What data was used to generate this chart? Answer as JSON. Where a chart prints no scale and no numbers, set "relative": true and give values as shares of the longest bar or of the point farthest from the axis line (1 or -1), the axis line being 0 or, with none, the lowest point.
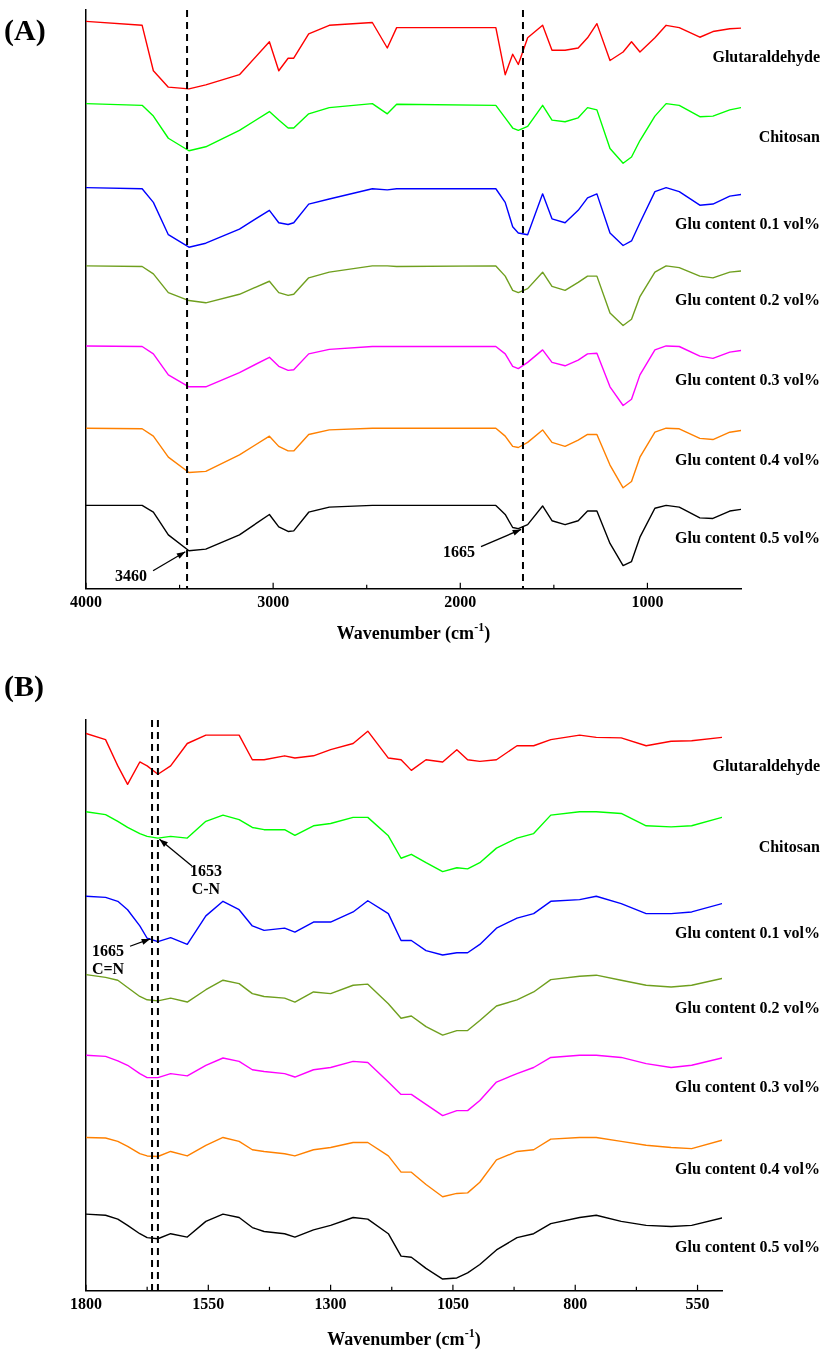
{
  "chart_data": [
    {
      "type": "line",
      "title": "(A)",
      "xlabel": "Wavenumber (cm$^{-1}$)",
      "relative": true,
      "legend": false,
      "marker": "none",
      "line_style": "solid",
      "xlim": [
        4000,
        500
      ],
      "xticks": [
        4000,
        {
          "value": 3500,
          "label": null
        },
        3000,
        {
          "value": 2500,
          "label": null
        },
        2000,
        {
          "value": 1500,
          "label": null
        },
        1000
      ],
      "x": [
        4000,
        3700,
        3640,
        3560,
        3450,
        3360,
        3180,
        3020,
        2970,
        2920,
        2890,
        2810,
        2700,
        2470,
        2390,
        2340,
        1810,
        1760,
        1720,
        1690,
        1640,
        1560,
        1510,
        1440,
        1370,
        1320,
        1270,
        1200,
        1130,
        1085,
        1040,
        960,
        900,
        830,
        720,
        650,
        560,
        500
      ],
      "ref_lines": [
        {
          "axis": "x",
          "value": 3460,
          "color": "#000000",
          "line_style": "dashed"
        },
        {
          "axis": "x",
          "value": 1665,
          "color": "#000000",
          "line_style": "dashed"
        }
      ],
      "annotations": [
        {
          "text": "3460",
          "x": 3460,
          "y": 0.067
        },
        {
          "text": "1665",
          "x": 1665,
          "y": 0.106
        }
      ],
      "series": [
        {
          "name": "Glutaraldehyde",
          "color": "#ff0000",
          "values": [
            1.0,
            0.993,
            0.913,
            0.884,
            0.881,
            0.888,
            0.906,
            0.964,
            0.913,
            0.935,
            0.935,
            0.978,
            0.993,
            0.998,
            0.953,
            0.989,
            0.989,
            0.906,
            0.942,
            0.924,
            0.971,
            0.993,
            0.949,
            0.949,
            0.953,
            0.971,
            0.996,
            0.931,
            0.946,
            0.964,
            0.946,
            0.971,
            0.993,
            0.989,
            0.972,
            0.982,
            0.987,
            0.988
          ]
        },
        {
          "name": "Chitosan",
          "color": "#00ff00",
          "values": [
            0.855,
            0.852,
            0.833,
            0.794,
            0.772,
            0.779,
            0.808,
            0.841,
            0.826,
            0.812,
            0.812,
            0.837,
            0.848,
            0.855,
            0.837,
            0.854,
            0.852,
            0.83,
            0.812,
            0.808,
            0.815,
            0.852,
            0.826,
            0.823,
            0.83,
            0.848,
            0.844,
            0.776,
            0.75,
            0.761,
            0.79,
            0.833,
            0.855,
            0.852,
            0.832,
            0.833,
            0.844,
            0.848
          ]
        },
        {
          "name": "Glu content 0.1 vol%",
          "color": "#0000ff",
          "values": [
            0.707,
            0.705,
            0.681,
            0.624,
            0.602,
            0.609,
            0.634,
            0.667,
            0.645,
            0.642,
            0.645,
            0.678,
            0.687,
            0.705,
            0.703,
            0.705,
            0.705,
            0.681,
            0.638,
            0.627,
            0.624,
            0.696,
            0.652,
            0.645,
            0.667,
            0.689,
            0.696,
            0.627,
            0.605,
            0.613,
            0.645,
            0.7,
            0.707,
            0.7,
            0.676,
            0.678,
            0.692,
            0.695
          ]
        },
        {
          "name": "Glu content 0.2 vol%",
          "color": "#6f9f1e",
          "values": [
            0.569,
            0.568,
            0.555,
            0.522,
            0.508,
            0.504,
            0.519,
            0.542,
            0.522,
            0.517,
            0.519,
            0.548,
            0.558,
            0.569,
            0.569,
            0.568,
            0.569,
            0.551,
            0.526,
            0.522,
            0.529,
            0.558,
            0.533,
            0.526,
            0.54,
            0.551,
            0.551,
            0.486,
            0.464,
            0.475,
            0.515,
            0.558,
            0.569,
            0.566,
            0.551,
            0.548,
            0.558,
            0.56
          ]
        },
        {
          "name": "Glu content 0.3 vol%",
          "color": "#ff00ff",
          "values": [
            0.428,
            0.427,
            0.414,
            0.377,
            0.356,
            0.356,
            0.381,
            0.408,
            0.392,
            0.385,
            0.386,
            0.414,
            0.422,
            0.427,
            0.427,
            0.427,
            0.427,
            0.414,
            0.392,
            0.388,
            0.399,
            0.421,
            0.399,
            0.393,
            0.403,
            0.414,
            0.415,
            0.356,
            0.323,
            0.334,
            0.377,
            0.421,
            0.428,
            0.427,
            0.41,
            0.406,
            0.417,
            0.42
          ]
        },
        {
          "name": "Glu content 0.4 vol%",
          "color": "#ff8000",
          "values": [
            0.283,
            0.282,
            0.269,
            0.232,
            0.205,
            0.207,
            0.236,
            0.269,
            0.251,
            0.243,
            0.243,
            0.272,
            0.28,
            0.283,
            0.283,
            0.283,
            0.283,
            0.269,
            0.251,
            0.249,
            0.258,
            0.28,
            0.258,
            0.251,
            0.262,
            0.272,
            0.272,
            0.218,
            0.178,
            0.189,
            0.232,
            0.276,
            0.283,
            0.282,
            0.265,
            0.263,
            0.276,
            0.279
          ]
        },
        {
          "name": "Glu content 0.5 vol%",
          "color": "#000000",
          "values": [
            0.147,
            0.147,
            0.135,
            0.095,
            0.067,
            0.07,
            0.095,
            0.131,
            0.109,
            0.101,
            0.102,
            0.135,
            0.144,
            0.147,
            0.147,
            0.147,
            0.147,
            0.131,
            0.108,
            0.106,
            0.113,
            0.146,
            0.12,
            0.113,
            0.12,
            0.137,
            0.137,
            0.08,
            0.041,
            0.048,
            0.091,
            0.142,
            0.147,
            0.144,
            0.125,
            0.124,
            0.137,
            0.14
          ]
        }
      ]
    },
    {
      "type": "line",
      "title": "(B)",
      "xlabel": "Wavenumber (cm$^{-1}$)",
      "relative": true,
      "legend": false,
      "marker": "none",
      "line_style": "solid",
      "xlim": [
        1800,
        500
      ],
      "xticks": [
        1800,
        {
          "value": 1675,
          "label": null
        },
        1550,
        {
          "value": 1425,
          "label": null
        },
        1300,
        {
          "value": 1175,
          "label": null
        },
        1050,
        {
          "value": 925,
          "label": null
        },
        800,
        {
          "value": 675,
          "label": null
        },
        550
      ],
      "x": [
        1800,
        1760,
        1735,
        1715,
        1690,
        1675,
        1653,
        1627,
        1593,
        1555,
        1520,
        1487,
        1460,
        1436,
        1394,
        1373,
        1335,
        1300,
        1254,
        1224,
        1182,
        1156,
        1135,
        1105,
        1071,
        1042,
        1020,
        995,
        961,
        919,
        885,
        850,
        791,
        757,
        706,
        655,
        604,
        562,
        500
      ],
      "ref_lines": [
        {
          "axis": "x",
          "value": 1665,
          "color": "#000000",
          "line_style": "dashed"
        },
        {
          "axis": "x",
          "value": 1653,
          "color": "#000000",
          "line_style": "dashed"
        }
      ],
      "annotations": [
        {
          "text": "1653\nC-N",
          "x": 1653,
          "y": 0.809
        },
        {
          "text": "1665\nC=N",
          "x": 1665,
          "y": 0.63
        }
      ],
      "series": [
        {
          "name": "Glutaraldehyde",
          "color": "#ff0000",
          "values": [
            0.996,
            0.985,
            0.938,
            0.905,
            0.945,
            0.938,
            0.923,
            0.938,
            0.978,
            0.993,
            0.993,
            0.993,
            0.949,
            0.949,
            0.956,
            0.952,
            0.956,
            0.967,
            0.978,
            1.0,
            0.952,
            0.949,
            0.93,
            0.949,
            0.945,
            0.967,
            0.949,
            0.946,
            0.949,
            0.974,
            0.974,
            0.985,
            0.993,
            0.989,
            0.988,
            0.974,
            0.982,
            0.983,
            0.989
          ]
        },
        {
          "name": "Chitosan",
          "color": "#00ff00",
          "values": [
            0.856,
            0.851,
            0.839,
            0.828,
            0.817,
            0.812,
            0.809,
            0.812,
            0.809,
            0.839,
            0.85,
            0.842,
            0.828,
            0.824,
            0.824,
            0.814,
            0.831,
            0.835,
            0.846,
            0.846,
            0.813,
            0.773,
            0.78,
            0.765,
            0.749,
            0.756,
            0.754,
            0.765,
            0.791,
            0.809,
            0.817,
            0.85,
            0.856,
            0.856,
            0.853,
            0.831,
            0.829,
            0.831,
            0.846
          ]
        },
        {
          "name": "Glu content 0.1 vol%",
          "color": "#0000ff",
          "values": [
            0.705,
            0.703,
            0.696,
            0.681,
            0.652,
            0.63,
            0.624,
            0.631,
            0.619,
            0.67,
            0.696,
            0.681,
            0.652,
            0.644,
            0.648,
            0.641,
            0.659,
            0.659,
            0.677,
            0.697,
            0.674,
            0.626,
            0.626,
            0.608,
            0.6,
            0.604,
            0.604,
            0.619,
            0.648,
            0.666,
            0.674,
            0.696,
            0.699,
            0.705,
            0.692,
            0.674,
            0.674,
            0.677,
            0.692
          ]
        },
        {
          "name": "Glu content 0.2 vol%",
          "color": "#6f9f1e",
          "values": [
            0.565,
            0.56,
            0.555,
            0.542,
            0.526,
            0.52,
            0.518,
            0.523,
            0.516,
            0.538,
            0.555,
            0.549,
            0.531,
            0.526,
            0.523,
            0.516,
            0.534,
            0.531,
            0.546,
            0.548,
            0.513,
            0.487,
            0.491,
            0.472,
            0.457,
            0.465,
            0.465,
            0.483,
            0.509,
            0.52,
            0.534,
            0.556,
            0.562,
            0.564,
            0.555,
            0.546,
            0.543,
            0.546,
            0.558
          ]
        },
        {
          "name": "Glu content 0.3 vol%",
          "color": "#ff00ff",
          "values": [
            0.421,
            0.419,
            0.411,
            0.403,
            0.388,
            0.381,
            0.381,
            0.388,
            0.384,
            0.403,
            0.416,
            0.41,
            0.395,
            0.392,
            0.388,
            0.382,
            0.395,
            0.399,
            0.41,
            0.408,
            0.373,
            0.351,
            0.351,
            0.333,
            0.313,
            0.322,
            0.322,
            0.34,
            0.373,
            0.388,
            0.399,
            0.417,
            0.421,
            0.421,
            0.417,
            0.406,
            0.399,
            0.403,
            0.416
          ]
        },
        {
          "name": "Glu content 0.4 vol%",
          "color": "#ff8000",
          "values": [
            0.274,
            0.273,
            0.267,
            0.258,
            0.245,
            0.241,
            0.24,
            0.249,
            0.241,
            0.26,
            0.274,
            0.267,
            0.252,
            0.249,
            0.245,
            0.241,
            0.252,
            0.256,
            0.265,
            0.265,
            0.241,
            0.212,
            0.212,
            0.19,
            0.168,
            0.174,
            0.175,
            0.194,
            0.234,
            0.249,
            0.252,
            0.271,
            0.274,
            0.274,
            0.267,
            0.26,
            0.256,
            0.254,
            0.269
          ]
        },
        {
          "name": "Glu content 0.5 vol%",
          "color": "#000000",
          "values": [
            0.137,
            0.135,
            0.128,
            0.117,
            0.102,
            0.095,
            0.093,
            0.102,
            0.096,
            0.124,
            0.137,
            0.131,
            0.113,
            0.106,
            0.102,
            0.096,
            0.109,
            0.117,
            0.131,
            0.128,
            0.102,
            0.062,
            0.06,
            0.04,
            0.021,
            0.023,
            0.032,
            0.047,
            0.073,
            0.095,
            0.102,
            0.12,
            0.131,
            0.135,
            0.124,
            0.117,
            0.115,
            0.117,
            0.13
          ]
        }
      ]
    }
  ]
}
